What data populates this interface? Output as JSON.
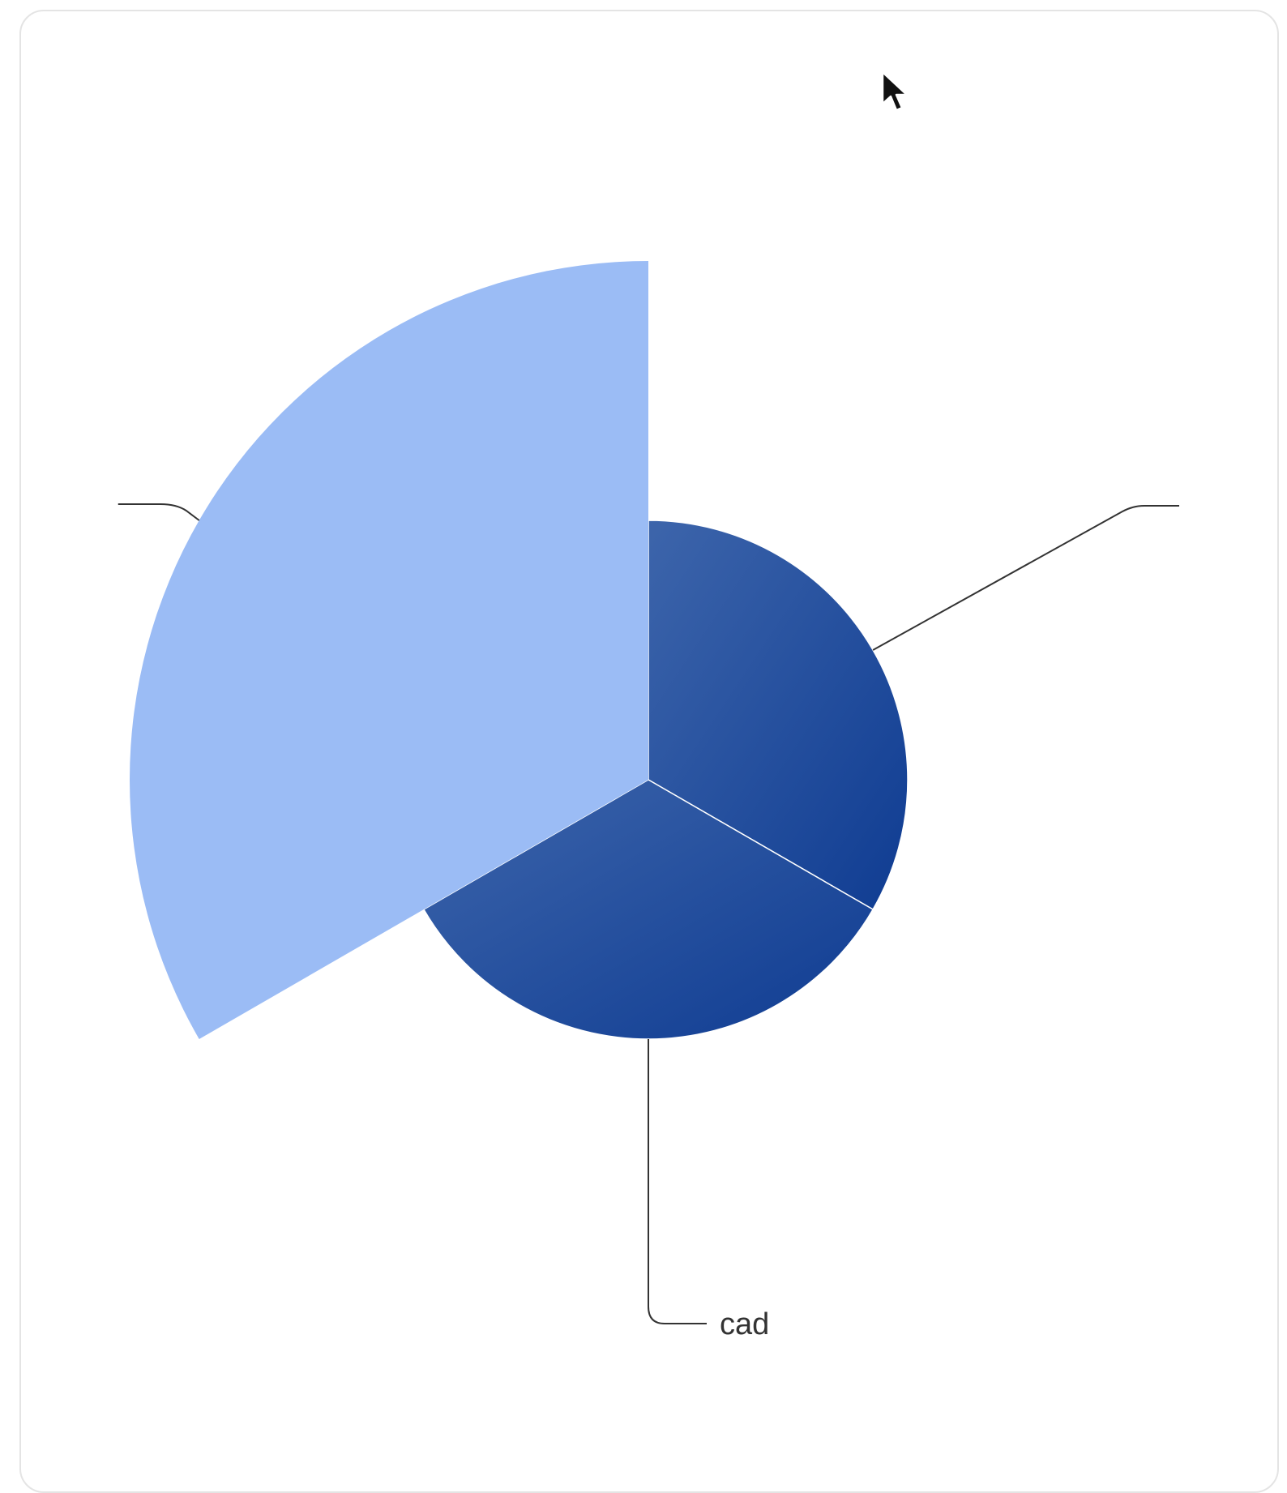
{
  "chart_data": {
    "type": "pie",
    "variant": "nightingale-rose",
    "title": "",
    "categories": [
      "",
      "",
      "cad"
    ],
    "values": [
      100,
      25,
      25
    ],
    "legend": "none",
    "labels_shown": [
      "cad"
    ]
  },
  "colors": {
    "slice_large": "#9bbcf5",
    "slice_small_light": "#3d65ab",
    "slice_small_dark": "#0f3c92",
    "leader_line": "#333333",
    "card_border": "#e4e4e4"
  },
  "cursor": {
    "icon": "arrow-pointer-icon"
  }
}
